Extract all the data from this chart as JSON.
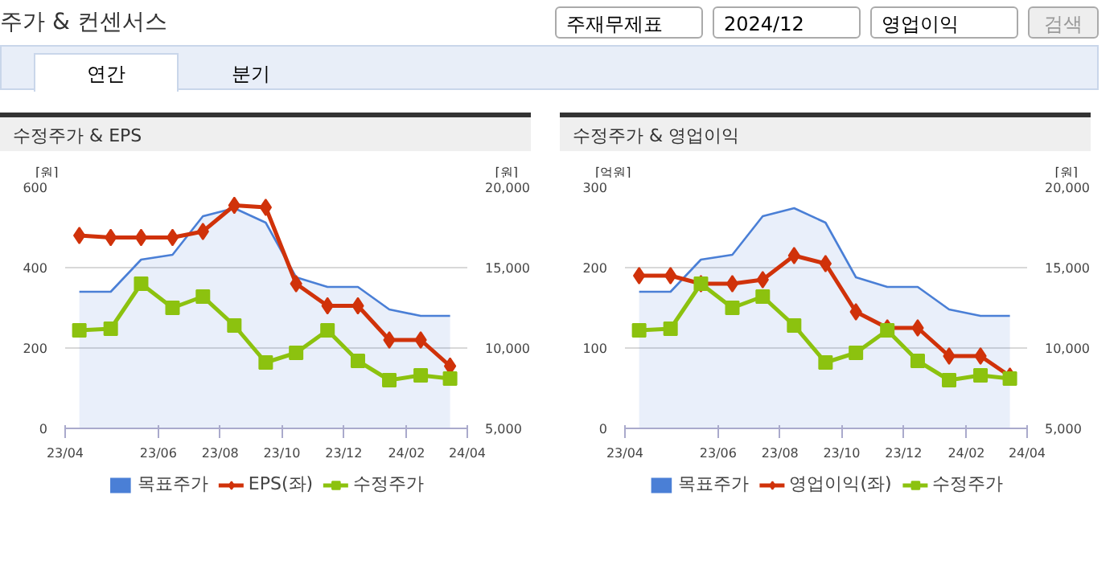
{
  "chart_data": [
    {
      "type": "line",
      "title": "수정주가 & EPS",
      "ylabel": "[원]",
      "y2label": "[원]",
      "annotations": [
        "주가 & 컨센서스",
        "주재무제표",
        "2024/12",
        "영업이익",
        "검색",
        "연간",
        "분기"
      ],
      "x": [
        "2023-03-15",
        "2023-04-15",
        "2023-05-15",
        "2023-06-15",
        "2023-07-15",
        "2023-08-15",
        "2023-09-15",
        "2023-10-15",
        "2023-11-15",
        "2023-12-15",
        "2024-01-15",
        "2024-02-15",
        "2024-03-15"
      ],
      "xlim": [
        "2023-03",
        "2024-04"
      ],
      "xticks": [
        {
          "value": "2023-03",
          "label": "23/04"
        },
        {
          "value": "2023-06",
          "label": "23/06"
        },
        {
          "value": "2023-08",
          "label": "23/08"
        },
        {
          "value": "2023-10",
          "label": "23/10"
        },
        {
          "value": "2023-12",
          "label": "23/12"
        },
        {
          "value": "2024-02",
          "label": "24/02"
        },
        {
          "value": "2024-04",
          "label": "24/04"
        }
      ],
      "ylim": [
        0,
        600
      ],
      "yticks": [
        0,
        200,
        400,
        600
      ],
      "y2lim": [
        5000,
        20000
      ],
      "y2ticks": [
        {
          "value": 5000,
          "label": "5,000"
        },
        {
          "value": 10000,
          "label": "10,000"
        },
        {
          "value": 15000,
          "label": "15,000"
        },
        {
          "value": 20000,
          "label": "20,000"
        }
      ],
      "grid": "y",
      "legend": "bottom",
      "series": [
        {
          "name": "목표주가",
          "type": "area",
          "axis": "y2",
          "color": "#4a7fd6",
          "marker": "none",
          "values": [
            13500,
            13500,
            15500,
            15800,
            18200,
            18700,
            17800,
            14400,
            13800,
            13800,
            12400,
            12000,
            12000
          ]
        },
        {
          "name": "EPS(좌)",
          "color": "#d0320a",
          "marker": "diamond",
          "values": [
            480,
            475,
            475,
            475,
            490,
            555,
            550,
            360,
            305,
            305,
            220,
            220,
            155
          ]
        },
        {
          "name": "수정주가",
          "type": "line",
          "axis": "y2",
          "color": "#8cc20f",
          "marker": "square",
          "values": [
            11100,
            11200,
            14000,
            12500,
            13200,
            11400,
            9100,
            9700,
            11100,
            9200,
            8000,
            8300,
            8100
          ]
        }
      ]
    },
    {
      "type": "line",
      "title": "수정주가 & 영업이익",
      "ylabel": "[억원]",
      "y2label": "[원]",
      "x": [
        "2023-03-15",
        "2023-04-15",
        "2023-05-15",
        "2023-06-15",
        "2023-07-15",
        "2023-08-15",
        "2023-09-15",
        "2023-10-15",
        "2023-11-15",
        "2023-12-15",
        "2024-01-15",
        "2024-02-15",
        "2024-03-15"
      ],
      "xlim": [
        "2023-03",
        "2024-04"
      ],
      "xticks": [
        {
          "value": "2023-03",
          "label": "23/04"
        },
        {
          "value": "2023-06",
          "label": "23/06"
        },
        {
          "value": "2023-08",
          "label": "23/08"
        },
        {
          "value": "2023-10",
          "label": "23/10"
        },
        {
          "value": "2023-12",
          "label": "23/12"
        },
        {
          "value": "2024-02",
          "label": "24/02"
        },
        {
          "value": "2024-04",
          "label": "24/04"
        }
      ],
      "ylim": [
        0,
        300
      ],
      "yticks": [
        0,
        100,
        200,
        300
      ],
      "y2lim": [
        5000,
        20000
      ],
      "y2ticks": [
        {
          "value": 5000,
          "label": "5,000"
        },
        {
          "value": 10000,
          "label": "10,000"
        },
        {
          "value": 15000,
          "label": "15,000"
        },
        {
          "value": 20000,
          "label": "20,000"
        }
      ],
      "grid": "y",
      "legend": "bottom",
      "series": [
        {
          "name": "목표주가",
          "type": "area",
          "axis": "y2",
          "color": "#4a7fd6",
          "marker": "none",
          "values": [
            13500,
            13500,
            15500,
            15800,
            18200,
            18700,
            17800,
            14400,
            13800,
            13800,
            12400,
            12000,
            12000
          ]
        },
        {
          "name": "영업이익(좌)",
          "color": "#d0320a",
          "marker": "diamond",
          "values": [
            190,
            190,
            180,
            180,
            185,
            215,
            205,
            145,
            125,
            125,
            90,
            90,
            65
          ]
        },
        {
          "name": "수정주가",
          "type": "line",
          "axis": "y2",
          "color": "#8cc20f",
          "marker": "square",
          "values": [
            11100,
            11200,
            14000,
            12500,
            13200,
            11400,
            9100,
            9700,
            11100,
            9200,
            8000,
            8300,
            8100
          ]
        }
      ]
    }
  ]
}
